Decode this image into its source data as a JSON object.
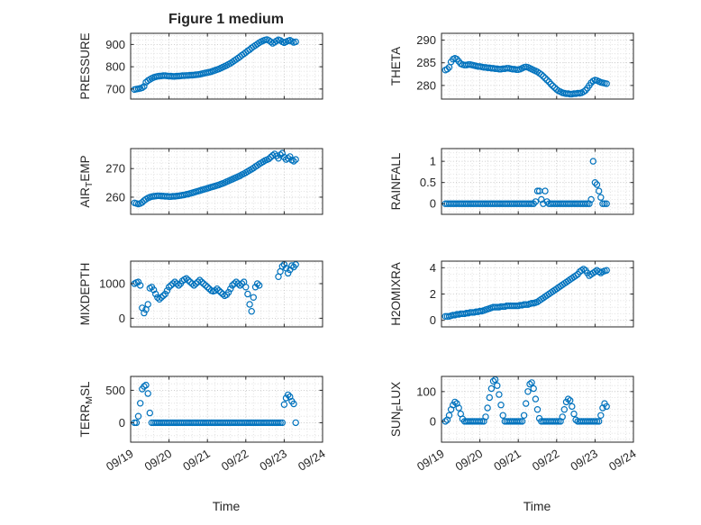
{
  "figure": {
    "title": "Figure 1 medium",
    "xlabel": "Time",
    "point_color": "#0072BD",
    "axis_color": "#262626",
    "major_grid_color": "#bdbdbd",
    "minor_grid_color": "#dadada",
    "background": "#ffffff",
    "x_axis": {
      "xlim": [
        0,
        5
      ],
      "ticks": [
        0,
        1,
        2,
        3,
        4,
        5
      ],
      "labels": [
        "09/19",
        "09/20",
        "09/21",
        "09/22",
        "09/23",
        "09/24"
      ],
      "minor_step": 0.2
    }
  },
  "chart_data": [
    {
      "type": "scatter",
      "name": "pressure",
      "ylabel": "PRESSURE",
      "ylabel_parts": [
        {
          "t": "PRESSURE",
          "sub": false
        }
      ],
      "xlim": [
        0,
        5
      ],
      "ylim": [
        655,
        950
      ],
      "yticks": [
        700,
        800,
        900
      ],
      "ytick_labels": [
        "700",
        "800",
        "900"
      ],
      "yminor": 20,
      "x_start": 0.1,
      "x_step": 0.05,
      "y": [
        698,
        700,
        701,
        703,
        706,
        712,
        730,
        738,
        743,
        748,
        752,
        755,
        757,
        758,
        759,
        760,
        760,
        759,
        758,
        758,
        757,
        757,
        758,
        758,
        759,
        760,
        760,
        761,
        761,
        762,
        762,
        763,
        764,
        765,
        766,
        768,
        770,
        772,
        774,
        776,
        778,
        781,
        784,
        787,
        790,
        794,
        798,
        802,
        806,
        811,
        816,
        821,
        827,
        833,
        839,
        845,
        852,
        858,
        864,
        871,
        877,
        884,
        890,
        896,
        902,
        908,
        913,
        917,
        920,
        922,
        918,
        912,
        905,
        910,
        916,
        921,
        918,
        912,
        908,
        912,
        916,
        919,
        914,
        909,
        912
      ]
    },
    {
      "type": "scatter",
      "name": "theta",
      "ylabel": "THETA",
      "ylabel_parts": [
        {
          "t": "THETA",
          "sub": false
        }
      ],
      "xlim": [
        0,
        5
      ],
      "ylim": [
        277,
        291.5
      ],
      "yticks": [
        280,
        285,
        290
      ],
      "ytick_labels": [
        "280",
        "285",
        "290"
      ],
      "yminor": 1,
      "x_start": 0.1,
      "x_step": 0.05,
      "y": [
        283.4,
        283.6,
        284.0,
        285.2,
        285.8,
        286.0,
        285.8,
        285.3,
        284.8,
        284.6,
        284.5,
        284.5,
        284.6,
        284.6,
        284.5,
        284.4,
        284.3,
        284.2,
        284.2,
        284.1,
        284.0,
        284.0,
        283.9,
        283.9,
        283.8,
        283.8,
        283.7,
        283.7,
        283.6,
        283.6,
        283.7,
        283.7,
        283.8,
        283.8,
        283.7,
        283.6,
        283.6,
        283.5,
        283.5,
        283.6,
        283.8,
        284.0,
        284.1,
        284.0,
        283.8,
        283.6,
        283.4,
        283.2,
        283.0,
        282.7,
        282.4,
        282.0,
        281.6,
        281.2,
        280.8,
        280.3,
        279.9,
        279.5,
        279.1,
        278.8,
        278.6,
        278.4,
        278.3,
        278.2,
        278.2,
        278.1,
        278.1,
        278.2,
        278.2,
        278.3,
        278.3,
        278.4,
        278.6,
        278.9,
        279.4,
        280.0,
        280.6,
        281.0,
        281.2,
        281.1,
        280.9,
        280.7,
        280.6,
        280.5,
        280.4
      ]
    },
    {
      "type": "scatter",
      "name": "air-temp",
      "ylabel": "AIR_TEMP",
      "ylabel_parts": [
        {
          "t": "AIR",
          "sub": false
        },
        {
          "t": "T",
          "sub": true
        },
        {
          "t": "EMP",
          "sub": false
        }
      ],
      "xlim": [
        0,
        5
      ],
      "ylim": [
        254,
        277
      ],
      "yticks": [
        260,
        270
      ],
      "ytick_labels": [
        "260",
        "270"
      ],
      "yminor": 2,
      "x_start": 0.1,
      "x_step": 0.05,
      "y": [
        258.0,
        257.8,
        257.6,
        257.8,
        258.2,
        258.8,
        259.3,
        259.7,
        260.0,
        260.2,
        260.3,
        260.4,
        260.5,
        260.5,
        260.4,
        260.4,
        260.3,
        260.3,
        260.2,
        260.2,
        260.3,
        260.3,
        260.4,
        260.5,
        260.6,
        260.7,
        260.8,
        261.0,
        261.1,
        261.3,
        261.5,
        261.7,
        261.9,
        262.1,
        262.3,
        262.5,
        262.7,
        262.9,
        263.1,
        263.3,
        263.5,
        263.7,
        263.9,
        264.1,
        264.3,
        264.6,
        264.8,
        265.1,
        265.4,
        265.7,
        266.0,
        266.3,
        266.6,
        266.9,
        267.2,
        267.5,
        267.9,
        268.2,
        268.6,
        269.0,
        269.4,
        269.8,
        270.2,
        270.7,
        271.1,
        271.6,
        272.0,
        272.4,
        272.8,
        273.1,
        273.4,
        274.0,
        274.6,
        275.1,
        274.4,
        273.6,
        274.8,
        275.4,
        274.0,
        273.2,
        273.6,
        274.2,
        273.0,
        272.6,
        273.2
      ]
    },
    {
      "type": "scatter",
      "name": "rainfall",
      "ylabel": "RAINFALL",
      "ylabel_parts": [
        {
          "t": "RAINFALL",
          "sub": false
        }
      ],
      "xlim": [
        0,
        5
      ],
      "ylim": [
        -0.25,
        1.3
      ],
      "yticks": [
        0,
        0.5,
        1
      ],
      "ytick_labels": [
        "0",
        "0.5",
        "1"
      ],
      "yminor": 0.1,
      "x_start": 0.1,
      "x_step": 0.05,
      "y": [
        0,
        0,
        0,
        0,
        0,
        0,
        0,
        0,
        0,
        0,
        0,
        0,
        0,
        0,
        0,
        0,
        0,
        0,
        0,
        0,
        0,
        0,
        0,
        0,
        0,
        0,
        0,
        0,
        0,
        0,
        0,
        0,
        0,
        0,
        0,
        0,
        0,
        0,
        0,
        0,
        0,
        0,
        0,
        0,
        0,
        0,
        0,
        0.05,
        0.3,
        0.3,
        0.1,
        0,
        0.3,
        0.05,
        0,
        0,
        0,
        0,
        0,
        0,
        0,
        0,
        0,
        0,
        0,
        0,
        0,
        0,
        0,
        0,
        0,
        0,
        0,
        0,
        0,
        0,
        0.1,
        1.0,
        0.5,
        0.45,
        0.3,
        0.15,
        0,
        0,
        0
      ]
    },
    {
      "type": "scatter",
      "name": "mixdepth",
      "ylabel": "MIXDEPTH",
      "ylabel_parts": [
        {
          "t": "MIXDEPTH",
          "sub": false
        }
      ],
      "xlim": [
        0,
        5
      ],
      "ylim": [
        -250,
        1650
      ],
      "yticks": [
        0,
        1000
      ],
      "ytick_labels": [
        "0",
        "1000"
      ],
      "yminor": 200,
      "x_start": 0.1,
      "x_step": 0.05,
      "y": [
        1000,
        1030,
        1050,
        950,
        300,
        150,
        250,
        400,
        870,
        900,
        820,
        700,
        600,
        550,
        600,
        650,
        700,
        800,
        900,
        950,
        1000,
        1050,
        1000,
        950,
        1000,
        1080,
        1120,
        1150,
        1100,
        1050,
        1000,
        950,
        1000,
        1050,
        1100,
        1050,
        1000,
        950,
        900,
        850,
        800,
        780,
        800,
        850,
        800,
        750,
        700,
        650,
        680,
        750,
        850,
        950,
        1000,
        1050,
        1000,
        950,
        1000,
        1050,
        900,
        700,
        400,
        200,
        600,
        900,
        1000,
        950,
        null,
        null,
        null,
        null,
        null,
        null,
        null,
        null,
        null,
        1200,
        1350,
        1500,
        1550,
        1450,
        1300,
        1400,
        1520,
        1480,
        1550
      ]
    },
    {
      "type": "scatter",
      "name": "h2omixra",
      "ylabel": "H2OMIXRA",
      "ylabel_parts": [
        {
          "t": "H2OMIXRA",
          "sub": false
        }
      ],
      "xlim": [
        0,
        5
      ],
      "ylim": [
        -0.5,
        4.5
      ],
      "yticks": [
        0,
        2,
        4
      ],
      "ytick_labels": [
        "0",
        "2",
        "4"
      ],
      "yminor": 0.5,
      "x_start": 0.1,
      "x_step": 0.05,
      "y": [
        0.3,
        0.3,
        0.3,
        0.35,
        0.4,
        0.4,
        0.45,
        0.45,
        0.5,
        0.5,
        0.5,
        0.55,
        0.55,
        0.6,
        0.6,
        0.6,
        0.65,
        0.65,
        0.7,
        0.7,
        0.75,
        0.8,
        0.85,
        0.9,
        0.95,
        1.0,
        1.0,
        1.0,
        1.0,
        1.05,
        1.05,
        1.05,
        1.1,
        1.1,
        1.1,
        1.1,
        1.1,
        1.1,
        1.1,
        1.15,
        1.15,
        1.2,
        1.2,
        1.2,
        1.25,
        1.3,
        1.3,
        1.35,
        1.4,
        1.5,
        1.6,
        1.7,
        1.8,
        1.9,
        2.0,
        2.1,
        2.2,
        2.3,
        2.4,
        2.5,
        2.6,
        2.7,
        2.8,
        2.9,
        3.0,
        3.1,
        3.2,
        3.3,
        3.4,
        3.5,
        3.7,
        3.8,
        3.9,
        3.8,
        3.6,
        3.4,
        3.5,
        3.6,
        3.7,
        3.8,
        3.7,
        3.6,
        3.7,
        3.75,
        3.8
      ]
    },
    {
      "type": "scatter",
      "name": "terr-msl",
      "ylabel": "TERR_MSL",
      "ylabel_parts": [
        {
          "t": "TERR",
          "sub": false
        },
        {
          "t": "M",
          "sub": true
        },
        {
          "t": "SL",
          "sub": false
        }
      ],
      "xlim": [
        0,
        5
      ],
      "ylim": [
        -300,
        714
      ],
      "yticks": [
        0,
        500
      ],
      "ytick_labels": [
        "0",
        "500"
      ],
      "yminor": 100,
      "x_start": 0.1,
      "x_step": 0.05,
      "y": [
        0,
        0,
        100,
        300,
        520,
        560,
        580,
        450,
        150,
        0,
        0,
        0,
        0,
        0,
        0,
        0,
        0,
        0,
        0,
        0,
        0,
        0,
        0,
        0,
        0,
        0,
        0,
        0,
        0,
        0,
        0,
        0,
        0,
        0,
        0,
        0,
        0,
        0,
        0,
        0,
        0,
        0,
        0,
        0,
        0,
        0,
        0,
        0,
        0,
        0,
        0,
        0,
        0,
        0,
        0,
        0,
        0,
        0,
        0,
        0,
        0,
        0,
        0,
        0,
        0,
        0,
        0,
        0,
        0,
        0,
        0,
        0,
        0,
        0,
        0,
        0,
        0,
        0,
        280,
        380,
        430,
        400,
        330,
        290,
        0
      ]
    },
    {
      "type": "scatter",
      "name": "sun-flux",
      "ylabel": "SUN_FLUX",
      "ylabel_parts": [
        {
          "t": "SUN",
          "sub": false
        },
        {
          "t": "F",
          "sub": true
        },
        {
          "t": "LUX",
          "sub": false
        }
      ],
      "xlim": [
        0,
        5
      ],
      "ylim": [
        -70,
        151
      ],
      "yticks": [
        0,
        100
      ],
      "ytick_labels": [
        "0",
        "100"
      ],
      "yminor": 20,
      "x_start": 0.1,
      "x_step": 0.05,
      "y": [
        0,
        5,
        20,
        40,
        55,
        65,
        60,
        45,
        25,
        8,
        0,
        0,
        0,
        0,
        0,
        0,
        0,
        0,
        0,
        0,
        0,
        15,
        45,
        80,
        110,
        135,
        140,
        120,
        90,
        55,
        20,
        0,
        0,
        0,
        0,
        0,
        0,
        0,
        0,
        0,
        0,
        20,
        60,
        100,
        125,
        130,
        110,
        75,
        40,
        10,
        0,
        0,
        0,
        0,
        0,
        0,
        0,
        0,
        0,
        0,
        0,
        15,
        40,
        65,
        75,
        70,
        50,
        25,
        5,
        0,
        0,
        0,
        0,
        0,
        0,
        0,
        0,
        0,
        0,
        0,
        0,
        20,
        45,
        60,
        50
      ]
    }
  ]
}
